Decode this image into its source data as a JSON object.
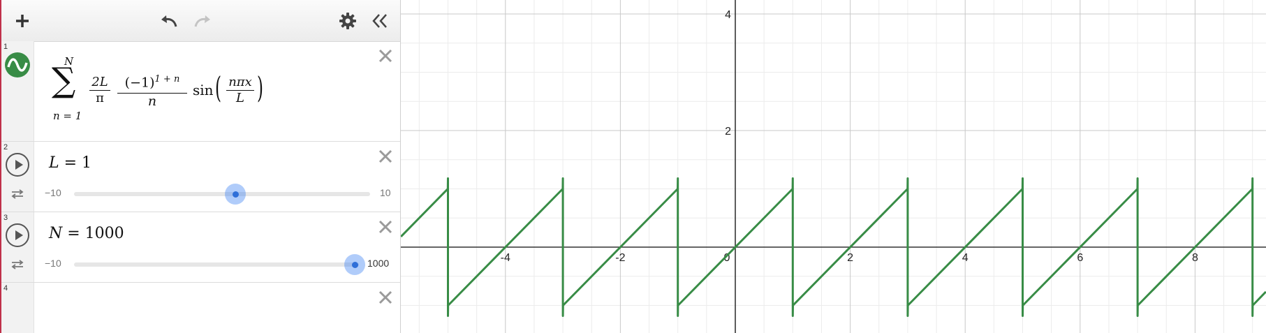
{
  "toolbar": {
    "add_icon": "plus-icon",
    "undo_icon": "undo-icon",
    "redo_icon": "redo-icon",
    "settings_icon": "gear-icon",
    "collapse_icon": "double-chevron-left-icon"
  },
  "expressions": [
    {
      "index": "1",
      "icon": "desmos-wave-icon",
      "sum_upper": "N",
      "sum_lower": "n = 1",
      "frac1_num": "2L",
      "frac1_den": "π",
      "frac2_num_base": "(−1)",
      "frac2_num_exp": "1 + n",
      "frac2_den": "n",
      "func": "sin",
      "frac3_num": "nπx",
      "frac3_den": "L",
      "color": "#388c46"
    },
    {
      "index": "2",
      "latex_var": "L",
      "latex_eq": " = 1",
      "min": "−10",
      "max": "10",
      "value": 1
    },
    {
      "index": "3",
      "latex_var": "N",
      "latex_eq": " = 1000",
      "min": "−10",
      "max": "1000",
      "value": 1000
    },
    {
      "index": "4"
    }
  ],
  "graph": {
    "x_ticks": [
      "-4",
      "-2",
      "0",
      "2",
      "4",
      "6",
      "8"
    ],
    "y_ticks": [
      "2",
      "4"
    ],
    "curve_color": "#388c46",
    "function": "sawtooth x with period 2L, L = 1"
  }
}
